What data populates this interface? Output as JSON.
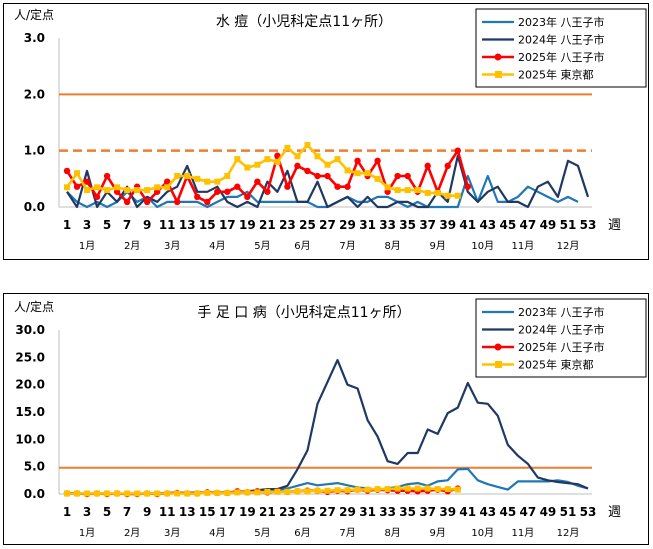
{
  "chart_data": [
    {
      "type": "line",
      "title": "水 痘（小児科定点11ヶ所）",
      "ylabel": "人/定点",
      "xlabel": "週",
      "ylim": [
        0,
        3
      ],
      "yticks": [
        "0.0",
        "1.0",
        "2.0",
        "3.0"
      ],
      "x_tick_labels": [
        "1",
        "3",
        "5",
        "7",
        "9",
        "11",
        "13",
        "15",
        "17",
        "19",
        "21",
        "23",
        "25",
        "27",
        "29",
        "31",
        "33",
        "35",
        "37",
        "39",
        "41",
        "43",
        "45",
        "47",
        "49",
        "51",
        "53"
      ],
      "months": [
        {
          "label": "1月",
          "week": 3
        },
        {
          "label": "2月",
          "week": 7.5
        },
        {
          "label": "3月",
          "week": 11.5
        },
        {
          "label": "4月",
          "week": 16
        },
        {
          "label": "5月",
          "week": 20.5
        },
        {
          "label": "6月",
          "week": 24.5
        },
        {
          "label": "7月",
          "week": 29
        },
        {
          "label": "8月",
          "week": 33.5
        },
        {
          "label": "9月",
          "week": 38
        },
        {
          "label": "10月",
          "week": 42.5
        },
        {
          "label": "11月",
          "week": 46.5
        },
        {
          "label": "12月",
          "week": 51
        }
      ],
      "reference_lines": [
        {
          "value": 2.0,
          "style": "solid",
          "color": "#ed7d31"
        },
        {
          "value": 1.0,
          "style": "dashed",
          "color": "#ed7d31"
        }
      ],
      "legend": "top-right",
      "series": [
        {
          "name": "2023年 八王子市",
          "color": "#1f77b4",
          "marker": "none",
          "width": 2.2,
          "values": [
            0.27,
            0.09,
            0.0,
            0.09,
            0.0,
            0.09,
            0.27,
            0.09,
            0.18,
            0.0,
            0.09,
            0.09,
            0.09,
            0.09,
            0.0,
            0.09,
            0.18,
            0.18,
            0.27,
            0.09,
            0.09,
            0.09,
            0.09,
            0.09,
            0.09,
            0.0,
            0.0,
            0.09,
            0.18,
            0.09,
            0.09,
            0.18,
            0.18,
            0.09,
            0.0,
            0.09,
            0.0,
            0.0,
            0.0,
            0.0,
            0.55,
            0.09,
            0.55,
            0.09,
            0.09,
            0.18,
            0.36,
            0.27,
            0.18,
            0.09,
            0.18,
            0.09
          ]
        },
        {
          "name": "2024年 八王子市",
          "color": "#1f3864",
          "marker": "none",
          "width": 2.2,
          "values": [
            0.27,
            0.0,
            0.64,
            0.0,
            0.27,
            0.09,
            0.36,
            0.0,
            0.18,
            0.09,
            0.27,
            0.36,
            0.73,
            0.27,
            0.27,
            0.36,
            0.09,
            0.0,
            0.09,
            0.0,
            0.45,
            0.27,
            0.64,
            0.09,
            0.09,
            0.45,
            0.0,
            0.09,
            0.18,
            0.0,
            0.18,
            0.0,
            0.0,
            0.09,
            0.09,
            0.0,
            0.0,
            0.27,
            0.09,
            0.91,
            0.27,
            0.09,
            0.27,
            0.36,
            0.09,
            0.09,
            0.0,
            0.36,
            0.45,
            0.18,
            0.82,
            0.73,
            0.18
          ]
        },
        {
          "name": "2025年 八王子市",
          "color": "#ff0000",
          "marker": "circle",
          "width": 2.6,
          "values": [
            0.64,
            0.36,
            0.45,
            0.18,
            0.55,
            0.27,
            0.09,
            0.36,
            0.09,
            0.27,
            0.45,
            0.09,
            0.55,
            0.18,
            0.09,
            0.27,
            0.27,
            0.36,
            0.18,
            0.45,
            0.27,
            0.91,
            0.36,
            0.73,
            0.64,
            0.55,
            0.55,
            0.36,
            0.36,
            0.82,
            0.55,
            0.82,
            0.27,
            0.55,
            0.55,
            0.27,
            0.73,
            0.27,
            0.73,
            1.0,
            0.36
          ]
        },
        {
          "name": "2025年 東京都",
          "color": "#ffc000",
          "marker": "square",
          "width": 2.6,
          "values": [
            0.35,
            0.6,
            0.3,
            0.35,
            0.3,
            0.35,
            0.3,
            0.3,
            0.3,
            0.35,
            0.35,
            0.55,
            0.55,
            0.5,
            0.45,
            0.45,
            0.55,
            0.85,
            0.7,
            0.75,
            0.85,
            0.8,
            1.05,
            0.9,
            1.1,
            0.9,
            0.75,
            0.85,
            0.65,
            0.6,
            0.6,
            0.5,
            0.35,
            0.3,
            0.3,
            0.3,
            0.25,
            0.25,
            0.2,
            0.2
          ]
        }
      ]
    },
    {
      "type": "line",
      "title": "手 足 口 病（小児科定点11ヶ所）",
      "ylabel": "人/定点",
      "xlabel": "週",
      "ylim": [
        0,
        30
      ],
      "yticks": [
        "0.0",
        "5.0",
        "10.0",
        "15.0",
        "20.0",
        "25.0",
        "30.0"
      ],
      "x_tick_labels": [
        "1",
        "3",
        "5",
        "7",
        "9",
        "11",
        "13",
        "15",
        "17",
        "19",
        "21",
        "23",
        "25",
        "27",
        "29",
        "31",
        "33",
        "35",
        "37",
        "39",
        "41",
        "43",
        "45",
        "47",
        "49",
        "51",
        "53"
      ],
      "months": [
        {
          "label": "1月",
          "week": 3
        },
        {
          "label": "2月",
          "week": 7.5
        },
        {
          "label": "3月",
          "week": 11.5
        },
        {
          "label": "4月",
          "week": 16
        },
        {
          "label": "5月",
          "week": 20.5
        },
        {
          "label": "6月",
          "week": 24.5
        },
        {
          "label": "7月",
          "week": 29
        },
        {
          "label": "8月",
          "week": 33.5
        },
        {
          "label": "9月",
          "week": 38
        },
        {
          "label": "10月",
          "week": 42.5
        },
        {
          "label": "11月",
          "week": 46.5
        },
        {
          "label": "12月",
          "week": 51
        }
      ],
      "reference_lines": [
        {
          "value": 4.8,
          "style": "solid",
          "color": "#ed7d31"
        }
      ],
      "legend": "top-right",
      "series": [
        {
          "name": "2023年 八王子市",
          "color": "#1f77b4",
          "marker": "none",
          "width": 2.2,
          "values": [
            0.1,
            0.1,
            0.0,
            0.1,
            0.1,
            0.0,
            0.1,
            0.0,
            0.1,
            0.1,
            0.2,
            0.2,
            0.2,
            0.3,
            0.2,
            0.2,
            0.3,
            0.4,
            0.4,
            0.3,
            0.5,
            0.8,
            1.0,
            1.5,
            2.0,
            1.6,
            1.8,
            2.0,
            1.6,
            1.2,
            1.0,
            0.8,
            1.0,
            1.3,
            1.8,
            2.0,
            1.5,
            2.3,
            2.5,
            4.5,
            4.6,
            2.5,
            1.8,
            1.3,
            0.8,
            2.3,
            2.3,
            2.3,
            2.3,
            2.5,
            2.2,
            1.5,
            1.0
          ]
        },
        {
          "name": "2024年 八王子市",
          "color": "#1f3864",
          "marker": "none",
          "width": 2.2,
          "values": [
            0.2,
            0.1,
            0.1,
            0.1,
            0.1,
            0.0,
            0.1,
            0.1,
            0.1,
            0.1,
            0.2,
            0.2,
            0.2,
            0.2,
            0.3,
            0.3,
            0.3,
            0.4,
            0.5,
            0.7,
            0.9,
            0.9,
            1.5,
            4.5,
            8.0,
            16.5,
            20.5,
            24.5,
            20.0,
            19.3,
            13.5,
            10.5,
            6.0,
            5.5,
            7.5,
            7.5,
            11.8,
            11.0,
            14.8,
            15.8,
            20.3,
            16.7,
            16.5,
            14.3,
            9.0,
            7.0,
            5.5,
            3.0,
            2.5,
            2.2,
            2.0,
            1.8,
            1.0
          ]
        },
        {
          "name": "2025年 八王子市",
          "color": "#ff0000",
          "marker": "circle",
          "width": 2.6,
          "values": [
            0.1,
            0.1,
            0.0,
            0.1,
            0.0,
            0.1,
            0.0,
            0.0,
            0.1,
            0.0,
            0.1,
            0.2,
            0.1,
            0.1,
            0.3,
            0.2,
            0.2,
            0.5,
            0.3,
            0.5,
            0.3,
            0.5,
            0.4,
            0.5,
            0.6,
            0.6,
            0.4,
            0.6,
            0.5,
            0.8,
            0.6,
            0.8,
            0.7,
            0.6,
            0.6,
            0.5,
            0.6,
            0.8,
            0.5,
            1.0
          ]
        },
        {
          "name": "2025年 東京都",
          "color": "#ffc000",
          "marker": "square",
          "width": 2.6,
          "values": [
            0.1,
            0.1,
            0.1,
            0.1,
            0.1,
            0.1,
            0.1,
            0.1,
            0.1,
            0.1,
            0.1,
            0.1,
            0.1,
            0.1,
            0.2,
            0.2,
            0.2,
            0.3,
            0.3,
            0.3,
            0.4,
            0.4,
            0.4,
            0.5,
            0.5,
            0.6,
            0.6,
            0.7,
            0.7,
            0.8,
            0.8,
            0.9,
            0.9,
            1.0,
            1.0,
            1.0,
            1.0,
            0.9,
            0.9,
            0.8
          ]
        }
      ]
    }
  ]
}
